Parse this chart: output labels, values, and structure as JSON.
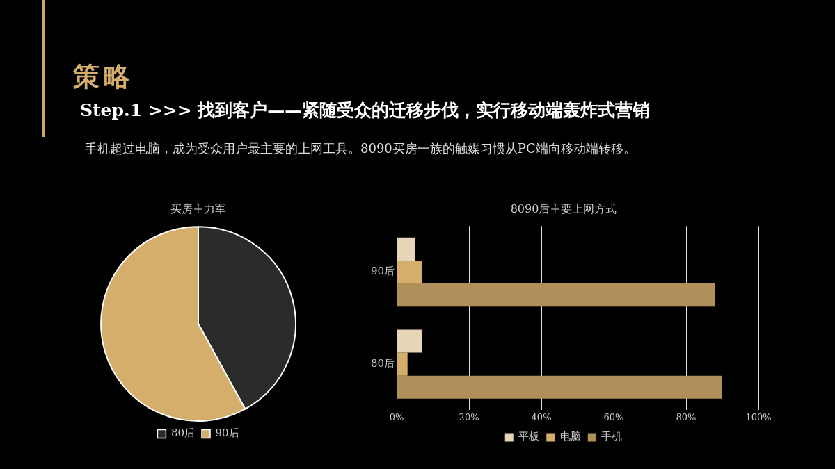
{
  "chart_data": [
    {
      "type": "other",
      "title": "策略",
      "subtitle": "Step.1 >>> 找到客户——紧随受众的迁移步伐，实行移动端轰炸式营销",
      "annotations": [
        "手机超过电脑，成为受众用户最主要的上网工具。8090买房一族的触媒习惯从PC端向移动端转移。"
      ]
    },
    {
      "type": "pie",
      "title": "买房主力军",
      "categories": [
        "80后",
        "90后"
      ],
      "values": [
        42,
        58
      ],
      "colors": [
        "#2b2b2b",
        "#d4ae6a"
      ],
      "legend": "bottom"
    },
    {
      "type": "bar",
      "title": "8090后主要上网方式",
      "orientation": "horizontal",
      "categories": [
        "90后",
        "80后"
      ],
      "series": [
        {
          "name": "平板",
          "color": "#e8d5b8",
          "values": [
            5,
            7
          ]
        },
        {
          "name": "电脑",
          "color": "#d4ae6a",
          "values": [
            7,
            3
          ]
        },
        {
          "name": "手机",
          "color": "#b08f5a",
          "values": [
            88,
            90
          ]
        }
      ],
      "xlim": [
        0,
        100
      ],
      "xticks": [
        {
          "value": 0,
          "label": "0%"
        },
        {
          "value": 20,
          "label": "20%"
        },
        {
          "value": 40,
          "label": "40%"
        },
        {
          "value": 60,
          "label": "60%"
        },
        {
          "value": 80,
          "label": "80%"
        },
        {
          "value": 100,
          "label": "100%"
        }
      ],
      "grid": "x",
      "legend": "bottom"
    }
  ]
}
